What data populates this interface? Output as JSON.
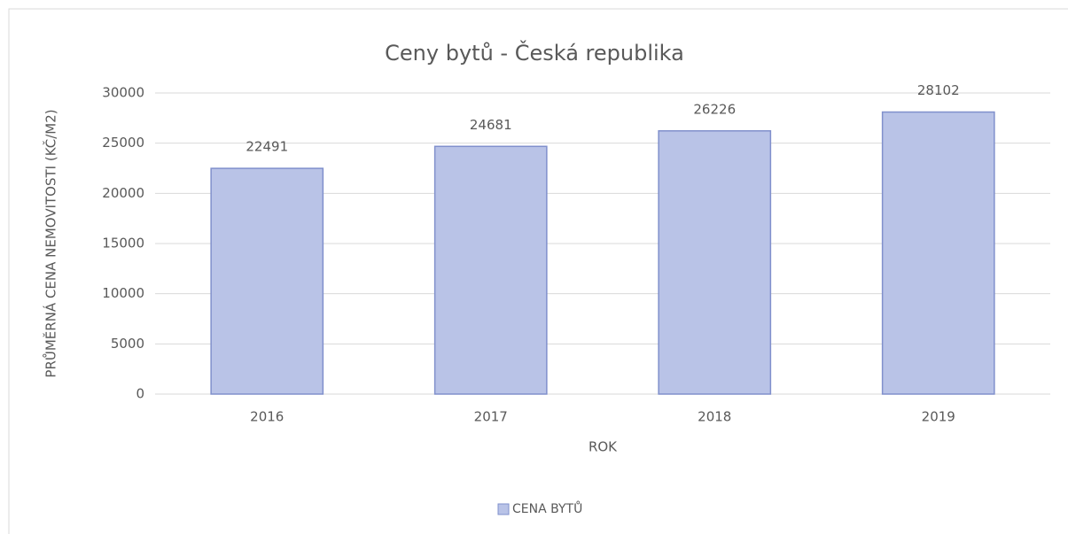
{
  "chart_data": {
    "type": "bar",
    "title": "Ceny bytů - Česká republika",
    "x_label": "ROK",
    "y_label": "PRŮMĚRNÁ CENA NEMOVITOSTI (KČ/M2)",
    "categories": [
      "2016",
      "2017",
      "2018",
      "2019"
    ],
    "series": [
      {
        "name": "CENA BYTŮ",
        "color": "#b9c3e7",
        "values": [
          22491,
          24681,
          26226,
          28102
        ]
      }
    ],
    "ylim": [
      0,
      30000
    ],
    "yticks": [
      0,
      5000,
      10000,
      15000,
      20000,
      25000,
      30000
    ],
    "grid": true,
    "legend": "bottom"
  }
}
